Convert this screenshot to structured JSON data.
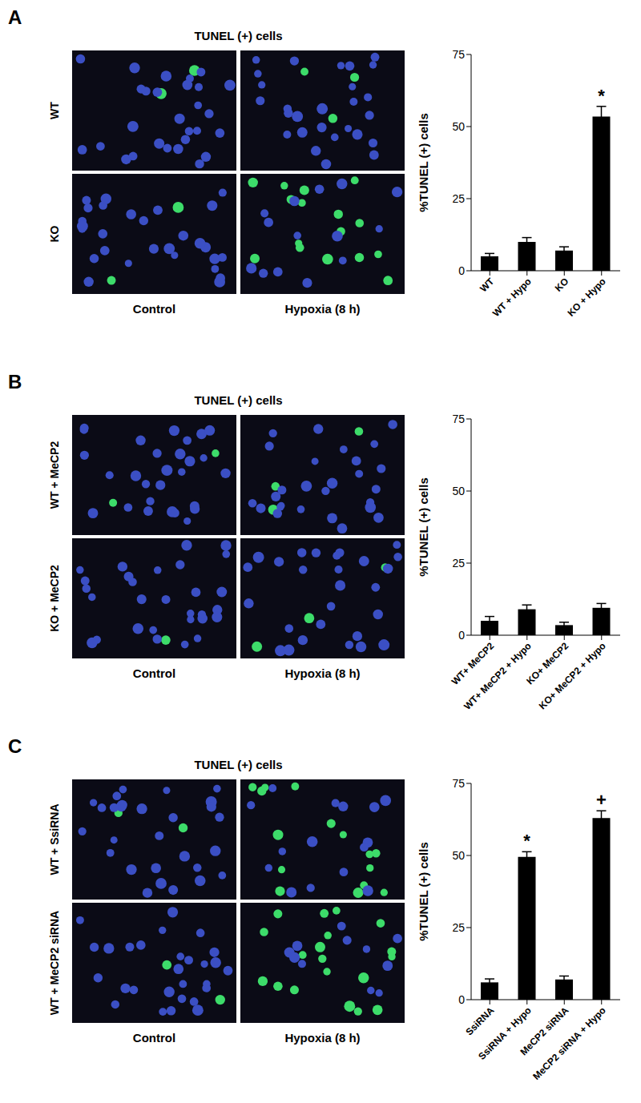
{
  "chart_data": [
    {
      "panel": "A",
      "type": "bar",
      "title": "TUNEL (+) cells",
      "image_rows": [
        "WT",
        "KO"
      ],
      "image_columns": [
        "Control",
        "Hypoxia (8 h)"
      ],
      "categories": [
        "WT",
        "WT + Hypo",
        "KO",
        "KO + Hypo"
      ],
      "values": [
        5,
        10,
        7,
        53.5
      ],
      "errors": [
        1,
        1.5,
        1.3,
        3.5
      ],
      "significance": [
        null,
        null,
        null,
        "*"
      ],
      "y_label": "%TUNEL (+) cells",
      "ylim": [
        0,
        75
      ],
      "yticks": [
        0,
        25,
        50,
        75
      ],
      "color": "#000000",
      "grid": false
    },
    {
      "panel": "B",
      "type": "bar",
      "title": "TUNEL (+) cells",
      "image_rows": [
        "WT + MeCP2",
        "KO + MeCP2"
      ],
      "image_columns": [
        "Control",
        "Hypoxia (8 h)"
      ],
      "categories": [
        "WT+ MeCP2",
        "WT+ MeCP2 + Hypo",
        "KO+ MeCP2",
        "KO+ MeCP2 + Hypo"
      ],
      "values": [
        5,
        9,
        3.5,
        9.5
      ],
      "errors": [
        1.5,
        1.5,
        1,
        1.5
      ],
      "significance": [
        null,
        null,
        null,
        null
      ],
      "y_label": "%TUNEL (+) cells",
      "ylim": [
        0,
        75
      ],
      "yticks": [
        0,
        25,
        50,
        75
      ],
      "color": "#000000",
      "grid": false
    },
    {
      "panel": "C",
      "type": "bar",
      "title": "TUNEL (+) cells",
      "image_rows": [
        "WT + SsiRNA",
        "WT + MeCP2 siRNA"
      ],
      "image_columns": [
        "Control",
        "Hypoxia (8 h)"
      ],
      "categories": [
        "SsiRNA",
        "SsiRNA + Hypo",
        "MeCP2 siRNA",
        "MeCP2 siRNA + Hypo"
      ],
      "values": [
        6,
        49.5,
        7,
        63
      ],
      "errors": [
        1.2,
        1.8,
        1.2,
        2.5
      ],
      "significance": [
        null,
        "*",
        null,
        "+"
      ],
      "y_label": "%TUNEL (+) cells",
      "ylim": [
        0,
        75
      ],
      "yticks": [
        0,
        25,
        50,
        75
      ],
      "color": "#000000",
      "grid": false
    }
  ]
}
